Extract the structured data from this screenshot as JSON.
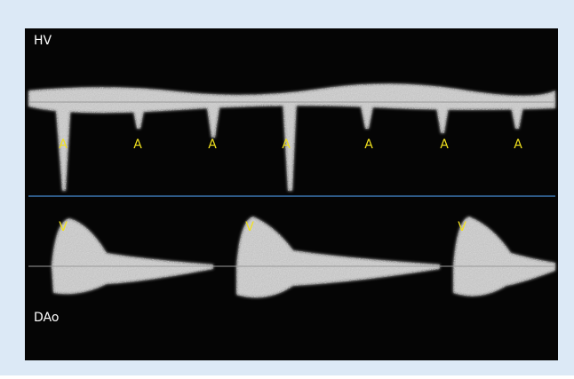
{
  "panels": [
    {
      "label": "HV",
      "markers": [
        "A",
        "A",
        "A",
        "A",
        "A",
        "A",
        "A"
      ]
    },
    {
      "label": "DAo",
      "markers": [
        "V",
        "V",
        "V"
      ]
    }
  ]
}
